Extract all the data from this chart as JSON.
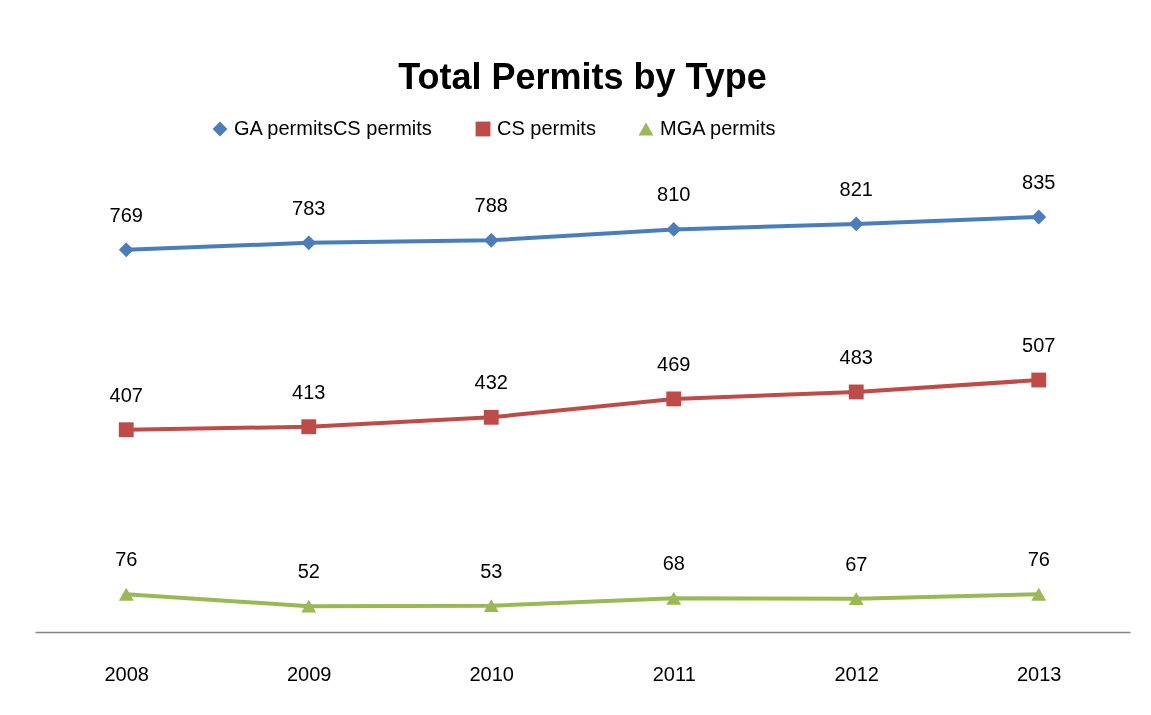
{
  "chart_data": {
    "type": "line",
    "title": "Total Permits by Type",
    "categories": [
      "2008",
      "2009",
      "2010",
      "2011",
      "2012",
      "2013"
    ],
    "series": [
      {
        "name": "GA permitsCS permits",
        "color": "#4a7ebb",
        "marker": "diamond",
        "values": [
          769,
          783,
          788,
          810,
          821,
          835
        ]
      },
      {
        "name": "CS permits",
        "color": "#be4b48",
        "marker": "square",
        "values": [
          407,
          413,
          432,
          469,
          483,
          507
        ]
      },
      {
        "name": "MGA permits",
        "color": "#98b954",
        "marker": "triangle",
        "values": [
          76,
          52,
          53,
          68,
          67,
          76
        ]
      }
    ],
    "tick_labels": "x",
    "grid": false,
    "legend": "top",
    "data_labels": true
  }
}
